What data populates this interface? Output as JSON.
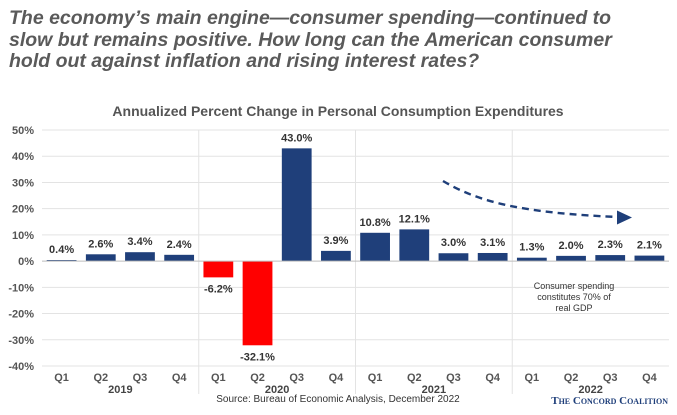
{
  "headline": {
    "lines": [
      "The economy’s main engine—consumer spending—continued to",
      "slow but remains positive. How long can the American consumer",
      "hold out against inflation and rising interest rates?"
    ]
  },
  "chart_data": {
    "type": "bar",
    "title": "Annualized Percent Change in Personal Consumption Expenditures",
    "ylim": [
      -40,
      50
    ],
    "yticks": [
      -40,
      -30,
      -20,
      -10,
      0,
      10,
      20,
      30,
      40,
      50
    ],
    "ytick_labels": [
      "-40%",
      "-30%",
      "-20%",
      "-10%",
      "0%",
      "10%",
      "20%",
      "30%",
      "40%",
      "50%"
    ],
    "years": [
      "2019",
      "2020",
      "2021",
      "2022"
    ],
    "categories": [
      "Q1",
      "Q2",
      "Q3",
      "Q4",
      "Q1",
      "Q2",
      "Q3",
      "Q4",
      "Q1",
      "Q2",
      "Q3",
      "Q4",
      "Q1",
      "Q2",
      "Q3",
      "Q4"
    ],
    "values": [
      0.4,
      2.6,
      3.4,
      2.4,
      -6.2,
      -32.1,
      43.0,
      3.9,
      10.8,
      12.1,
      3.0,
      3.1,
      1.3,
      2.0,
      2.3,
      2.1
    ],
    "data_labels": [
      "0.4%",
      "2.6%",
      "3.4%",
      "2.4%",
      "-6.2%",
      "-32.1%",
      "43.0%",
      "3.9%",
      "10.8%",
      "12.1%",
      "3.0%",
      "3.1%",
      "1.3%",
      "2.0%",
      "2.3%",
      "2.1%"
    ],
    "colors": {
      "positive": "#1f3f7a",
      "negative": "#ff0000",
      "arrow": "#1f3f7a"
    },
    "grid": true,
    "annotation": [
      "Consumer spending",
      "constitutes 70% of",
      "real GDP"
    ],
    "source": "Source: Bureau of Economic Analysis, December 2022",
    "logo": "The Concord Coalition"
  }
}
